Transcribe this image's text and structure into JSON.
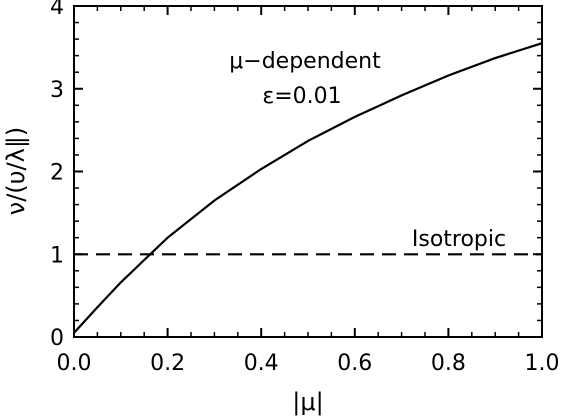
{
  "chart_data": {
    "type": "line",
    "xlabel": "|μ|",
    "ylabel": "ν/(υ/λ∥)",
    "xlim": [
      0.0,
      1.0
    ],
    "ylim": [
      0,
      4
    ],
    "x_ticks": [
      0.0,
      0.2,
      0.4,
      0.6,
      0.8,
      1.0
    ],
    "x_tick_labels": [
      "0.0",
      "0.2",
      "0.4",
      "0.6",
      "0.8",
      "1.0"
    ],
    "y_ticks": [
      0,
      1,
      2,
      3,
      4
    ],
    "y_tick_labels": [
      "0",
      "1",
      "2",
      "3",
      "4"
    ],
    "grid": false,
    "series": [
      {
        "name": "μ−dependent ε=0.01",
        "style": "solid",
        "x": [
          0.0,
          0.05,
          0.1,
          0.15,
          0.2,
          0.3,
          0.4,
          0.5,
          0.6,
          0.7,
          0.8,
          0.9,
          1.0
        ],
        "y": [
          0.05,
          0.36,
          0.66,
          0.93,
          1.2,
          1.65,
          2.03,
          2.37,
          2.66,
          2.92,
          3.16,
          3.37,
          3.55
        ]
      },
      {
        "name": "Isotropic",
        "style": "dashed",
        "x": [
          0.0,
          1.0
        ],
        "y": [
          1.0,
          1.0
        ]
      }
    ],
    "annotations": {
      "mu_dependent": "μ−dependent",
      "epsilon": "ε=0.01",
      "isotropic": "Isotropic"
    }
  }
}
